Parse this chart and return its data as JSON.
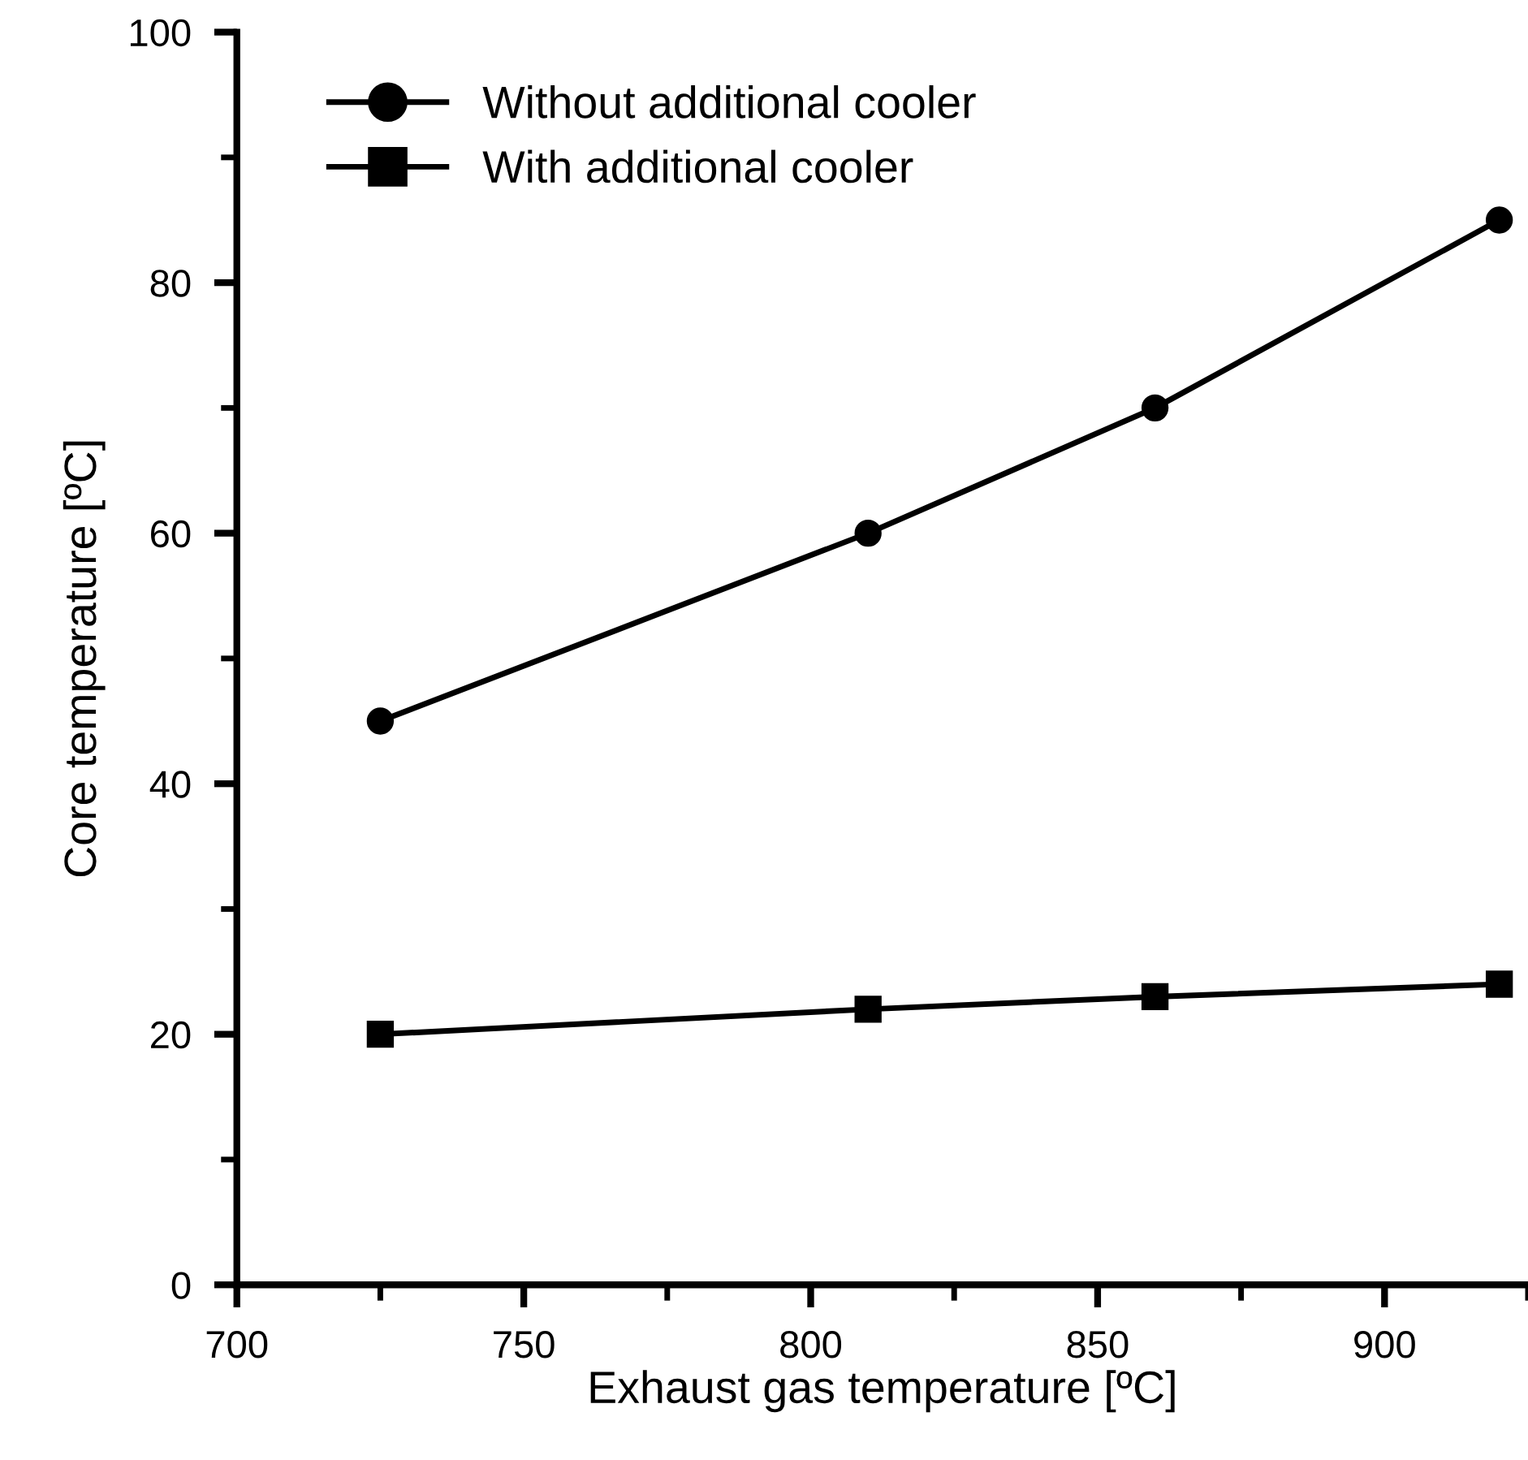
{
  "chart_data": {
    "type": "line",
    "xlabel": "Exhaust gas temperature [ºC]",
    "ylabel": "Core temperature [ºC]",
    "x": [
      725,
      810,
      860,
      920
    ],
    "series": [
      {
        "name": "Without additional cooler",
        "color": "#000000",
        "marker": "circle",
        "values": [
          45,
          60,
          70,
          85
        ]
      },
      {
        "name": "With additional cooler",
        "color": "#000000",
        "marker": "square",
        "values": [
          20,
          22,
          23,
          24
        ]
      }
    ],
    "xlim": [
      700,
      925
    ],
    "xticks": [
      700,
      750,
      800,
      850,
      900
    ],
    "ylim": [
      0,
      100
    ],
    "yticks": [
      0,
      20,
      40,
      60,
      80,
      100
    ],
    "grid": false,
    "legend": "top left",
    "line_style": "solid"
  }
}
